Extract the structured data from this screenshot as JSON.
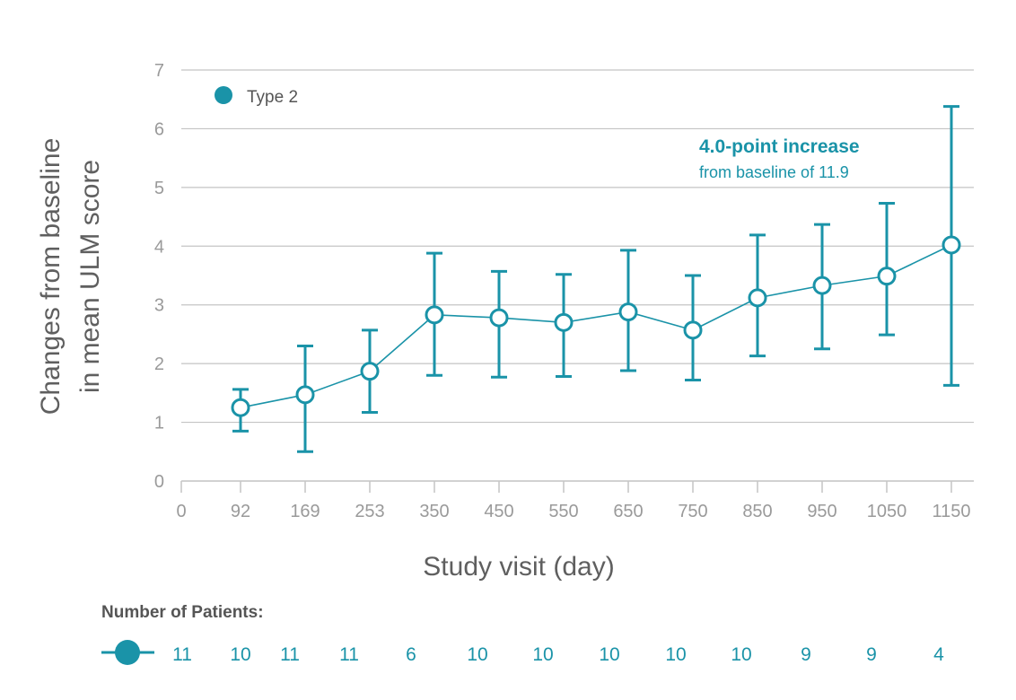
{
  "colors": {
    "series": "#1a93a8",
    "grid": "#c4c4c4",
    "axis_text": "#9a9a9a",
    "title_text": "#5f5f5f"
  },
  "chart_data": {
    "type": "line",
    "xlabel": "Study visit (day)",
    "ylabel_lines": [
      "Changes from baseline",
      "in mean ULM score"
    ],
    "ylim": [
      0,
      7
    ],
    "yticks": [
      0,
      1,
      2,
      3,
      4,
      5,
      6,
      7
    ],
    "grid": "horizontal",
    "x_tick_labels": [
      "0",
      "92",
      "169",
      "253",
      "350",
      "450",
      "550",
      "650",
      "750",
      "850",
      "950",
      "1050",
      "1150"
    ],
    "legend": {
      "position": "top-left",
      "label": "Type 2"
    },
    "series": [
      {
        "name": "Type 2",
        "x": [
          "92",
          "169",
          "253",
          "350",
          "450",
          "550",
          "650",
          "750",
          "850",
          "950",
          "1050",
          "1150"
        ],
        "values": [
          1.25,
          1.47,
          1.87,
          2.83,
          2.78,
          2.7,
          2.88,
          2.57,
          3.12,
          3.33,
          3.49,
          4.02
        ],
        "error_low": [
          0.85,
          0.5,
          1.17,
          1.8,
          1.77,
          1.78,
          1.88,
          1.72,
          2.13,
          2.25,
          2.49,
          1.63
        ],
        "error_high": [
          1.56,
          2.3,
          2.57,
          3.88,
          3.57,
          3.52,
          3.93,
          3.5,
          4.19,
          4.37,
          4.73,
          6.38
        ]
      }
    ],
    "annotation": {
      "title": "4.0-point increase",
      "subtitle": "from baseline of 11.9"
    },
    "patients": {
      "title": "Number of Patients:",
      "values": [
        "11",
        "10",
        "11",
        "11",
        "6",
        "10",
        "10",
        "10",
        "10",
        "10",
        "9",
        "9",
        "4"
      ]
    }
  }
}
